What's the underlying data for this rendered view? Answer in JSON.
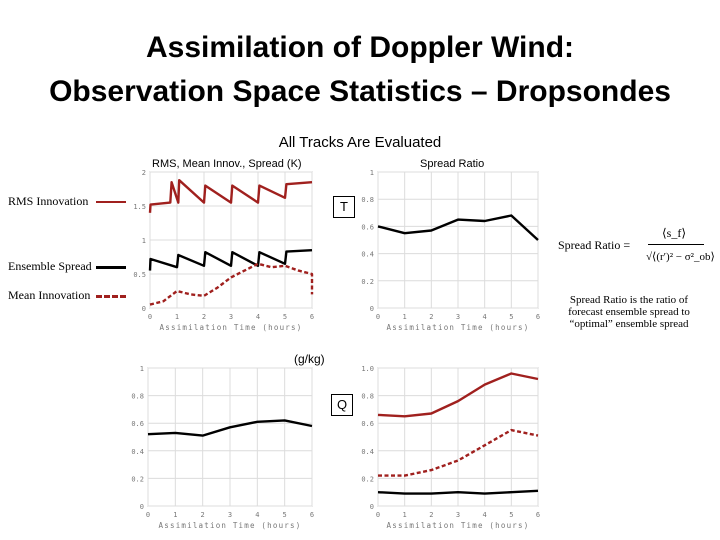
{
  "header": {
    "title_line1": "Assimilation of Doppler Wind:",
    "title_line2": "Observation Space Statistics – Dropsondes",
    "subtitle": "All Tracks Are Evaluated"
  },
  "panel_labels": {
    "left": "RMS, Mean Innov., Spread (K)",
    "right": "Spread Ratio"
  },
  "legend": [
    {
      "label": "RMS Innovation",
      "color": "#a0201e",
      "style": "solid"
    },
    {
      "label": "Ensemble Spread",
      "color": "#000000",
      "style": "solid"
    },
    {
      "label": "Mean Innovation",
      "color": "#a0201e",
      "style": "dashed"
    }
  ],
  "variables": {
    "t": "T",
    "q": "Q",
    "q_unit": "(g/kg)"
  },
  "formula": {
    "label": "Spread Ratio =",
    "numerator": "⟨s_f⟩",
    "denominator": "√⟨(r′)² − σ²_ob⟩"
  },
  "note": "Spread Ratio is the ratio of forecast ensemble spread to “optimal” ensemble spread",
  "chart_data": [
    {
      "id": "t-stats",
      "type": "line",
      "xlabel": "Assimilation Time (hours)",
      "xticks": [
        0,
        1,
        2,
        3,
        4,
        5,
        6
      ],
      "xlim": [
        0,
        6
      ],
      "yticks": [
        0,
        0.5,
        1,
        1.5,
        2
      ],
      "ytick_labels": [
        "0",
        "0.5",
        "1",
        "1.5",
        "2"
      ],
      "ylim": [
        0,
        2
      ],
      "series": [
        {
          "key": "rms",
          "color": "#a0201e",
          "dash": false,
          "x": [
            0,
            0.02,
            0.75,
            0.8,
            1.05,
            1.08,
            2,
            2.05,
            3,
            3.05,
            4,
            4.05,
            5,
            5.05,
            6
          ],
          "y": [
            1.4,
            1.52,
            1.55,
            1.85,
            1.55,
            1.88,
            1.55,
            1.8,
            1.55,
            1.8,
            1.55,
            1.8,
            1.62,
            1.82,
            1.85
          ]
        },
        {
          "key": "spread",
          "color": "#000000",
          "dash": false,
          "x": [
            0,
            0.02,
            1,
            1.05,
            2,
            2.05,
            3,
            3.05,
            4,
            4.05,
            5,
            5.05,
            6
          ],
          "y": [
            0.55,
            0.72,
            0.6,
            0.78,
            0.62,
            0.82,
            0.62,
            0.82,
            0.62,
            0.82,
            0.65,
            0.83,
            0.85
          ]
        },
        {
          "key": "mean",
          "color": "#a0201e",
          "dash": true,
          "x": [
            0,
            0.5,
            1,
            1.5,
            2,
            2.5,
            3,
            3.5,
            4,
            4.5,
            5,
            5.5,
            6,
            6
          ],
          "y": [
            0.05,
            0.1,
            0.25,
            0.2,
            0.18,
            0.3,
            0.45,
            0.55,
            0.65,
            0.6,
            0.62,
            0.55,
            0.5,
            0.2
          ]
        }
      ]
    },
    {
      "id": "t-ratio",
      "type": "line",
      "xlabel": "Assimilation Time (hours)",
      "xticks": [
        0,
        1,
        2,
        3,
        4,
        5,
        6
      ],
      "xlim": [
        0,
        6
      ],
      "yticks": [
        0,
        0.2,
        0.4,
        0.6,
        0.8,
        1
      ],
      "ytick_labels": [
        "0",
        "0.2",
        "0.4",
        "0.6",
        "0.8",
        "1"
      ],
      "ylim": [
        0,
        1
      ],
      "series": [
        {
          "key": "ratio",
          "color": "#000000",
          "dash": false,
          "x": [
            0,
            1,
            2,
            3,
            4,
            5,
            6
          ],
          "y": [
            0.6,
            0.55,
            0.57,
            0.65,
            0.64,
            0.68,
            0.5
          ]
        }
      ]
    },
    {
      "id": "q-ratio",
      "type": "line",
      "xlabel": "Assimilation Time (hours)",
      "xticks": [
        0,
        1,
        2,
        3,
        4,
        5,
        6
      ],
      "xlim": [
        0,
        6
      ],
      "yticks": [
        0,
        0.2,
        0.4,
        0.6,
        0.8,
        1
      ],
      "ytick_labels": [
        "0",
        "0.2",
        "0.4",
        "0.6",
        "0.8",
        "1"
      ],
      "ylim": [
        0,
        1
      ],
      "series": [
        {
          "key": "ratio",
          "color": "#000000",
          "dash": false,
          "x": [
            0,
            1,
            2,
            3,
            4,
            5,
            6
          ],
          "y": [
            0.52,
            0.53,
            0.51,
            0.57,
            0.61,
            0.62,
            0.58
          ]
        }
      ]
    },
    {
      "id": "q-stats",
      "type": "line",
      "xlabel": "Assimilation Time (hours)",
      "xticks": [
        0,
        1,
        2,
        3,
        4,
        5,
        6
      ],
      "xlim": [
        0,
        6
      ],
      "yticks": [
        0,
        0.2,
        0.4,
        0.6,
        0.8,
        1
      ],
      "ytick_labels": [
        "0",
        "0.2",
        "0.4",
        "0.6",
        "0.8",
        "1.0"
      ],
      "ylim": [
        0,
        1
      ],
      "series": [
        {
          "key": "rms",
          "color": "#a0201e",
          "dash": false,
          "x": [
            0,
            1,
            2,
            3,
            4,
            5,
            6
          ],
          "y": [
            0.66,
            0.65,
            0.67,
            0.76,
            0.88,
            0.96,
            0.92
          ]
        },
        {
          "key": "mean",
          "color": "#a0201e",
          "dash": true,
          "x": [
            0,
            1,
            2,
            3,
            4,
            5,
            6
          ],
          "y": [
            0.22,
            0.22,
            0.26,
            0.33,
            0.44,
            0.55,
            0.51
          ]
        },
        {
          "key": "spread",
          "color": "#000000",
          "dash": false,
          "x": [
            0,
            1,
            2,
            3,
            4,
            5,
            6
          ],
          "y": [
            0.1,
            0.09,
            0.09,
            0.1,
            0.09,
            0.1,
            0.11
          ]
        }
      ]
    }
  ]
}
